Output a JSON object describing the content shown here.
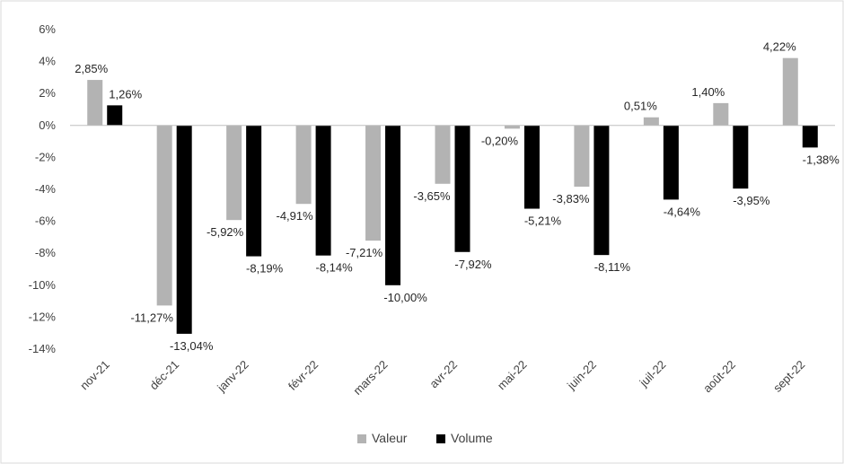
{
  "chart_data": {
    "type": "bar",
    "categories": [
      "nov-21",
      "déc-21",
      "janv-22",
      "févr-22",
      "mars-22",
      "avr-22",
      "mai-22",
      "juin-22",
      "juil-22",
      "août-22",
      "sept-22"
    ],
    "series": [
      {
        "name": "Valeur",
        "color": "#b3b3b3",
        "values": [
          2.85,
          -11.27,
          -5.92,
          -4.91,
          -7.21,
          -3.65,
          -0.2,
          -3.83,
          0.51,
          1.4,
          4.22
        ],
        "labels": [
          "2,85%",
          "-11,27%",
          "-5,92%",
          "-4,91%",
          "-7,21%",
          "-3,65%",
          "-0,20%",
          "-3,83%",
          "0,51%",
          "1,40%",
          "4,22%"
        ]
      },
      {
        "name": "Volume",
        "color": "#000000",
        "values": [
          1.26,
          -13.04,
          -8.19,
          -8.14,
          -10.0,
          -7.92,
          -5.21,
          -8.11,
          -4.64,
          -3.95,
          -1.38
        ],
        "labels": [
          "1,26%",
          "-13,04%",
          "-8,19%",
          "-8,14%",
          "-10,00%",
          "-7,92%",
          "-5,21%",
          "-8,11%",
          "-4,64%",
          "-3,95%",
          "-1,38%"
        ]
      }
    ],
    "title": "",
    "xlabel": "",
    "ylabel": "",
    "ylim": [
      -14,
      6
    ],
    "yticks": [
      6,
      4,
      2,
      0,
      -2,
      -4,
      -6,
      -8,
      -10,
      -12,
      -14
    ],
    "ytick_labels": [
      "6%",
      "4%",
      "2%",
      "0%",
      "-2%",
      "-4%",
      "-6%",
      "-8%",
      "-10%",
      "-12%",
      "-14%"
    ],
    "grid": false,
    "legend_position": "bottom"
  }
}
